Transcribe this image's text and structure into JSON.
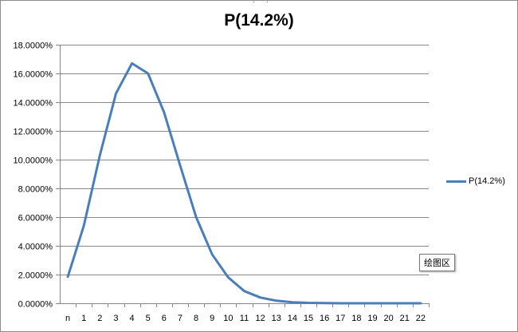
{
  "chart_data": {
    "type": "line",
    "title": "P(14.2%)",
    "categories": [
      "n",
      "1",
      "2",
      "3",
      "4",
      "5",
      "6",
      "7",
      "8",
      "9",
      "10",
      "11",
      "12",
      "13",
      "14",
      "15",
      "16",
      "17",
      "18",
      "19",
      "20",
      "21",
      "22"
    ],
    "series": [
      {
        "name": "P(14.2%)",
        "color": "#4a7ebb",
        "values": [
          1.85,
          5.4,
          10.3,
          14.6,
          16.7,
          16.0,
          13.3,
          9.6,
          6.0,
          3.4,
          1.8,
          0.85,
          0.4,
          0.18,
          0.07,
          0.03,
          0.01,
          0.0,
          0.0,
          0.0,
          0.0,
          0.0,
          0.0
        ]
      }
    ],
    "ylim": [
      0,
      18
    ],
    "yticks": [
      "0.0000%",
      "2.0000%",
      "4.0000%",
      "6.0000%",
      "8.0000%",
      "10.0000%",
      "12.0000%",
      "14.0000%",
      "16.0000%",
      "18.0000%"
    ],
    "grid": true,
    "legend_position": "right"
  },
  "tooltip": "绘图区"
}
